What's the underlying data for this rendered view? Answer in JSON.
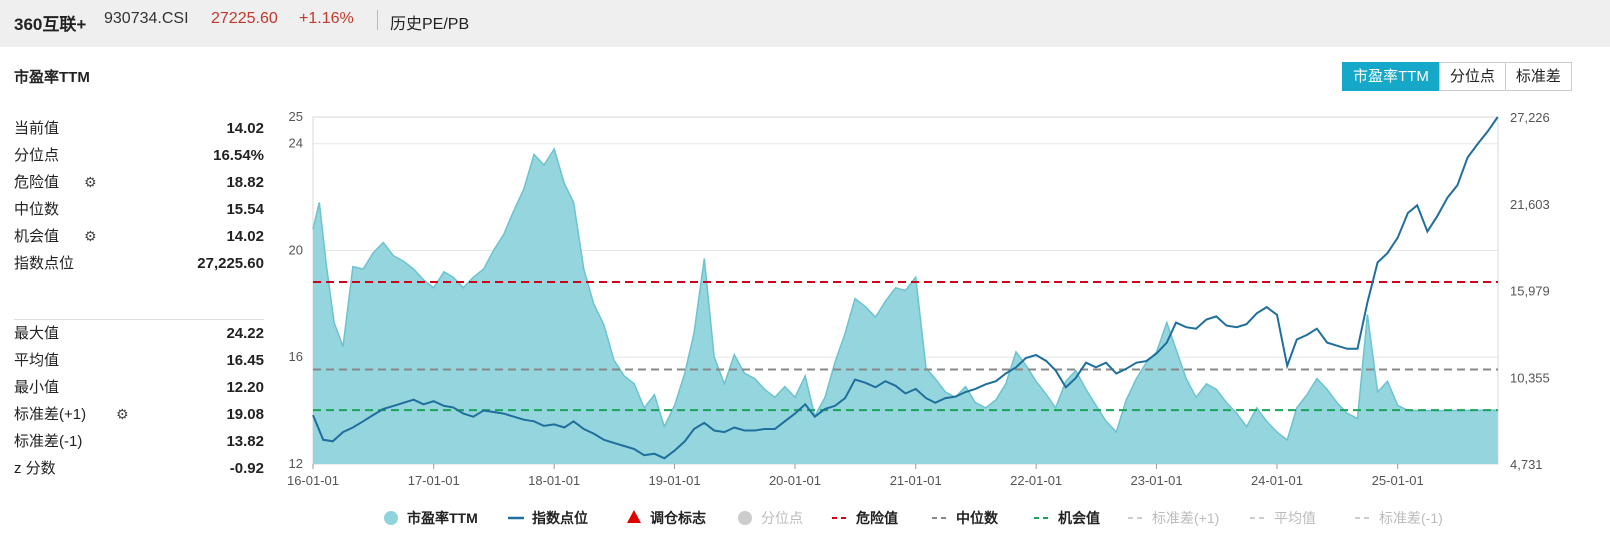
{
  "header": {
    "index_name": "360互联+",
    "index_code": "930734.CSI",
    "price": "27225.60",
    "change": "+1.16%",
    "section": "历史PE/PB"
  },
  "panel": {
    "title": "市盈率TTM",
    "tabs": [
      {
        "label": "市盈率TTM",
        "active": true
      },
      {
        "label": "分位点",
        "active": false
      },
      {
        "label": "标准差",
        "active": false
      }
    ]
  },
  "stats_top": [
    {
      "label": "当前值",
      "value": "14.02",
      "gear": false
    },
    {
      "label": "分位点",
      "value": "16.54%",
      "gear": false
    },
    {
      "label": "危险值",
      "value": "18.82",
      "gear": true
    },
    {
      "label": "中位数",
      "value": "15.54",
      "gear": false
    },
    {
      "label": "机会值",
      "value": "14.02",
      "gear": true
    },
    {
      "label": "指数点位",
      "value": "27,225.60",
      "gear": false
    }
  ],
  "stats_bottom": [
    {
      "label": "最大值",
      "value": "24.22",
      "gear": false
    },
    {
      "label": "平均值",
      "value": "16.45",
      "gear": false
    },
    {
      "label": "最小值",
      "value": "12.20",
      "gear": false
    },
    {
      "label": "标准差(+1)",
      "value": "19.08",
      "gear": true
    },
    {
      "label": "标准差(-1)",
      "value": "13.82",
      "gear": false
    },
    {
      "label": "z 分数",
      "value": "-0.92",
      "gear": false
    }
  ],
  "colors": {
    "pe_fill": "#8fd3dc",
    "pe_line": "#6cc3cf",
    "index_line": "#1f6f9c",
    "danger": "#d0021b",
    "median": "#888888",
    "opportunity": "#1aa35a",
    "disabled": "#cccccc",
    "accent": "#16a8c8",
    "price_red": "#c0392b"
  },
  "chart_data": {
    "type": "area",
    "x_start": "2016-01-01",
    "x_end": "2025-11-01",
    "x_tick_labels": [
      "16-01-01",
      "17-01-01",
      "18-01-01",
      "19-01-01",
      "20-01-01",
      "21-01-01",
      "22-01-01",
      "23-01-01",
      "24-01-01",
      "25-01-01"
    ],
    "y_left": {
      "range": [
        12,
        25
      ],
      "ticks": [
        12,
        16,
        20,
        24,
        25
      ]
    },
    "y_right": {
      "range": [
        4731,
        27226
      ],
      "ticks": [
        "4,731",
        "10,355",
        "15,979",
        "21,603",
        "27,226"
      ]
    },
    "grid": true,
    "legend_position": "bottom",
    "reference_lines": [
      {
        "name": "危险值",
        "value": 18.82
      },
      {
        "name": "中位数",
        "value": 15.54
      },
      {
        "name": "机会值",
        "value": 14.02
      }
    ],
    "series": [
      {
        "name": "市盈率TTM",
        "axis": "left",
        "points": [
          [
            "2016-01-01",
            20.8
          ],
          [
            "2016-01-20",
            21.8
          ],
          [
            "2016-02-10",
            19.5
          ],
          [
            "2016-03-05",
            17.3
          ],
          [
            "2016-04-01",
            16.4
          ],
          [
            "2016-05-01",
            19.4
          ],
          [
            "2016-06-01",
            19.3
          ],
          [
            "2016-07-01",
            19.9
          ],
          [
            "2016-08-01",
            20.3
          ],
          [
            "2016-09-01",
            19.8
          ],
          [
            "2016-10-01",
            19.6
          ],
          [
            "2016-11-01",
            19.3
          ],
          [
            "2016-12-01",
            18.9
          ],
          [
            "2017-01-01",
            18.6
          ],
          [
            "2017-02-01",
            19.2
          ],
          [
            "2017-03-01",
            19.0
          ],
          [
            "2017-04-01",
            18.6
          ],
          [
            "2017-05-01",
            19.0
          ],
          [
            "2017-06-01",
            19.3
          ],
          [
            "2017-07-01",
            20.0
          ],
          [
            "2017-08-01",
            20.6
          ],
          [
            "2017-09-01",
            21.5
          ],
          [
            "2017-10-01",
            22.3
          ],
          [
            "2017-11-01",
            23.6
          ],
          [
            "2017-12-01",
            23.2
          ],
          [
            "2018-01-01",
            23.8
          ],
          [
            "2018-02-01",
            22.5
          ],
          [
            "2018-03-01",
            21.8
          ],
          [
            "2018-04-01",
            19.3
          ],
          [
            "2018-05-01",
            18.0
          ],
          [
            "2018-06-01",
            17.2
          ],
          [
            "2018-07-01",
            15.9
          ],
          [
            "2018-08-01",
            15.3
          ],
          [
            "2018-09-01",
            15.0
          ],
          [
            "2018-10-01",
            14.1
          ],
          [
            "2018-11-01",
            14.6
          ],
          [
            "2018-12-01",
            13.4
          ],
          [
            "2019-01-01",
            14.2
          ],
          [
            "2019-02-01",
            15.4
          ],
          [
            "2019-03-01",
            16.9
          ],
          [
            "2019-04-01",
            19.7
          ],
          [
            "2019-05-01",
            16.0
          ],
          [
            "2019-06-01",
            15.0
          ],
          [
            "2019-07-01",
            16.1
          ],
          [
            "2019-08-01",
            15.4
          ],
          [
            "2019-09-01",
            15.2
          ],
          [
            "2019-10-01",
            14.8
          ],
          [
            "2019-11-01",
            14.5
          ],
          [
            "2019-12-01",
            14.9
          ],
          [
            "2020-01-01",
            14.5
          ],
          [
            "2020-02-01",
            15.3
          ],
          [
            "2020-03-01",
            13.8
          ],
          [
            "2020-04-01",
            14.5
          ],
          [
            "2020-05-01",
            15.8
          ],
          [
            "2020-06-01",
            16.9
          ],
          [
            "2020-07-01",
            18.2
          ],
          [
            "2020-08-01",
            17.9
          ],
          [
            "2020-09-01",
            17.5
          ],
          [
            "2020-10-01",
            18.1
          ],
          [
            "2020-11-01",
            18.6
          ],
          [
            "2020-12-01",
            18.5
          ],
          [
            "2021-01-01",
            19.0
          ],
          [
            "2021-02-01",
            15.6
          ],
          [
            "2021-03-01",
            15.2
          ],
          [
            "2021-04-01",
            14.7
          ],
          [
            "2021-05-01",
            14.5
          ],
          [
            "2021-06-01",
            14.9
          ],
          [
            "2021-07-01",
            14.3
          ],
          [
            "2021-08-01",
            14.1
          ],
          [
            "2021-09-01",
            14.4
          ],
          [
            "2021-10-01",
            15.0
          ],
          [
            "2021-11-01",
            16.2
          ],
          [
            "2021-12-01",
            15.7
          ],
          [
            "2022-01-01",
            15.1
          ],
          [
            "2022-02-01",
            14.6
          ],
          [
            "2022-03-01",
            14.1
          ],
          [
            "2022-04-01",
            15.1
          ],
          [
            "2022-05-01",
            15.5
          ],
          [
            "2022-06-01",
            14.8
          ],
          [
            "2022-07-01",
            14.2
          ],
          [
            "2022-08-01",
            13.6
          ],
          [
            "2022-09-01",
            13.2
          ],
          [
            "2022-10-01",
            14.4
          ],
          [
            "2022-11-01",
            15.2
          ],
          [
            "2022-12-01",
            15.8
          ],
          [
            "2023-01-01",
            16.2
          ],
          [
            "2023-02-01",
            17.3
          ],
          [
            "2023-03-01",
            16.3
          ],
          [
            "2023-04-01",
            15.2
          ],
          [
            "2023-05-01",
            14.5
          ],
          [
            "2023-06-01",
            15.0
          ],
          [
            "2023-07-01",
            14.8
          ],
          [
            "2023-08-01",
            14.3
          ],
          [
            "2023-09-01",
            13.9
          ],
          [
            "2023-10-01",
            13.4
          ],
          [
            "2023-11-01",
            14.1
          ],
          [
            "2023-12-01",
            13.6
          ],
          [
            "2024-01-01",
            13.2
          ],
          [
            "2024-02-01",
            12.9
          ],
          [
            "2024-03-01",
            14.1
          ],
          [
            "2024-04-01",
            14.6
          ],
          [
            "2024-05-01",
            15.2
          ],
          [
            "2024-06-01",
            14.8
          ],
          [
            "2024-07-01",
            14.3
          ],
          [
            "2024-08-01",
            13.9
          ],
          [
            "2024-09-01",
            13.7
          ],
          [
            "2024-10-01",
            17.6
          ],
          [
            "2024-11-01",
            14.7
          ],
          [
            "2024-12-01",
            15.1
          ],
          [
            "2025-01-01",
            14.2
          ],
          [
            "2025-02-01",
            14.0
          ],
          [
            "2025-06-01",
            14.0
          ],
          [
            "2025-10-31",
            14.02
          ]
        ]
      },
      {
        "name": "指数点位",
        "axis": "right",
        "points": [
          [
            "2016-01-01",
            7900
          ],
          [
            "2016-02-01",
            6300
          ],
          [
            "2016-03-01",
            6200
          ],
          [
            "2016-04-01",
            6800
          ],
          [
            "2016-05-01",
            7100
          ],
          [
            "2016-06-01",
            7500
          ],
          [
            "2016-07-01",
            7900
          ],
          [
            "2016-08-01",
            8300
          ],
          [
            "2016-09-01",
            8500
          ],
          [
            "2016-10-01",
            8700
          ],
          [
            "2016-11-01",
            8900
          ],
          [
            "2016-12-01",
            8600
          ],
          [
            "2017-01-01",
            8800
          ],
          [
            "2017-02-01",
            8500
          ],
          [
            "2017-03-01",
            8400
          ],
          [
            "2017-04-01",
            8000
          ],
          [
            "2017-05-01",
            7800
          ],
          [
            "2017-06-01",
            8200
          ],
          [
            "2017-07-01",
            8100
          ],
          [
            "2017-08-01",
            8000
          ],
          [
            "2017-09-01",
            7800
          ],
          [
            "2017-10-01",
            7600
          ],
          [
            "2017-11-01",
            7500
          ],
          [
            "2017-12-01",
            7200
          ],
          [
            "2018-01-01",
            7300
          ],
          [
            "2018-02-01",
            7100
          ],
          [
            "2018-03-01",
            7500
          ],
          [
            "2018-04-01",
            7000
          ],
          [
            "2018-05-01",
            6700
          ],
          [
            "2018-06-01",
            6300
          ],
          [
            "2018-07-01",
            6100
          ],
          [
            "2018-08-01",
            5900
          ],
          [
            "2018-09-01",
            5700
          ],
          [
            "2018-10-01",
            5300
          ],
          [
            "2018-11-01",
            5400
          ],
          [
            "2018-12-01",
            5100
          ],
          [
            "2019-01-01",
            5600
          ],
          [
            "2019-02-01",
            6200
          ],
          [
            "2019-03-01",
            7000
          ],
          [
            "2019-04-01",
            7400
          ],
          [
            "2019-05-01",
            6900
          ],
          [
            "2019-06-01",
            6800
          ],
          [
            "2019-07-01",
            7100
          ],
          [
            "2019-08-01",
            6900
          ],
          [
            "2019-09-01",
            6900
          ],
          [
            "2019-10-01",
            7000
          ],
          [
            "2019-11-01",
            7000
          ],
          [
            "2019-12-01",
            7500
          ],
          [
            "2020-01-01",
            8000
          ],
          [
            "2020-02-01",
            8600
          ],
          [
            "2020-03-01",
            7800
          ],
          [
            "2020-04-01",
            8300
          ],
          [
            "2020-05-01",
            8500
          ],
          [
            "2020-06-01",
            9000
          ],
          [
            "2020-07-01",
            10200
          ],
          [
            "2020-08-01",
            10000
          ],
          [
            "2020-09-01",
            9700
          ],
          [
            "2020-10-01",
            10100
          ],
          [
            "2020-11-01",
            9800
          ],
          [
            "2020-12-01",
            9300
          ],
          [
            "2021-01-01",
            9600
          ],
          [
            "2021-02-01",
            9000
          ],
          [
            "2021-03-01",
            8700
          ],
          [
            "2021-04-01",
            9000
          ],
          [
            "2021-05-01",
            9100
          ],
          [
            "2021-06-01",
            9400
          ],
          [
            "2021-07-01",
            9600
          ],
          [
            "2021-08-01",
            9900
          ],
          [
            "2021-09-01",
            10100
          ],
          [
            "2021-10-01",
            10600
          ],
          [
            "2021-11-01",
            11000
          ],
          [
            "2021-12-01",
            11600
          ],
          [
            "2022-01-01",
            11800
          ],
          [
            "2022-02-01",
            11400
          ],
          [
            "2022-03-01",
            10800
          ],
          [
            "2022-04-01",
            9700
          ],
          [
            "2022-05-01",
            10300
          ],
          [
            "2022-06-01",
            11300
          ],
          [
            "2022-07-01",
            11000
          ],
          [
            "2022-08-01",
            11300
          ],
          [
            "2022-09-01",
            10600
          ],
          [
            "2022-10-01",
            10900
          ],
          [
            "2022-11-01",
            11300
          ],
          [
            "2022-12-01",
            11400
          ],
          [
            "2023-01-01",
            11900
          ],
          [
            "2023-02-01",
            12600
          ],
          [
            "2023-03-01",
            13900
          ],
          [
            "2023-04-01",
            13600
          ],
          [
            "2023-05-01",
            13500
          ],
          [
            "2023-06-01",
            14100
          ],
          [
            "2023-07-01",
            14300
          ],
          [
            "2023-08-01",
            13700
          ],
          [
            "2023-09-01",
            13600
          ],
          [
            "2023-10-01",
            13800
          ],
          [
            "2023-11-01",
            14500
          ],
          [
            "2023-12-01",
            14900
          ],
          [
            "2024-01-01",
            14400
          ],
          [
            "2024-02-01",
            11100
          ],
          [
            "2024-03-01",
            12800
          ],
          [
            "2024-04-01",
            13100
          ],
          [
            "2024-05-01",
            13500
          ],
          [
            "2024-06-01",
            12600
          ],
          [
            "2024-07-01",
            12400
          ],
          [
            "2024-08-01",
            12200
          ],
          [
            "2024-09-01",
            12200
          ],
          [
            "2024-10-01",
            15200
          ],
          [
            "2024-11-01",
            17800
          ],
          [
            "2024-12-01",
            18400
          ],
          [
            "2025-01-01",
            19400
          ],
          [
            "2025-02-01",
            21000
          ],
          [
            "2025-03-01",
            21500
          ],
          [
            "2025-04-01",
            19800
          ],
          [
            "2025-05-01",
            20800
          ],
          [
            "2025-06-01",
            22000
          ],
          [
            "2025-07-01",
            22800
          ],
          [
            "2025-08-01",
            24600
          ],
          [
            "2025-09-01",
            25500
          ],
          [
            "2025-10-01",
            26300
          ],
          [
            "2025-10-31",
            27225.6
          ]
        ]
      }
    ],
    "legend": [
      {
        "name": "市盈率TTM",
        "style": "circle",
        "enabled": true
      },
      {
        "name": "指数点位",
        "style": "line",
        "enabled": true
      },
      {
        "name": "调仓标志",
        "style": "triangle",
        "enabled": true
      },
      {
        "name": "分位点",
        "style": "circle",
        "enabled": false
      },
      {
        "name": "危险值",
        "style": "dash",
        "enabled": true
      },
      {
        "name": "中位数",
        "style": "dash",
        "enabled": true
      },
      {
        "name": "机会值",
        "style": "dash",
        "enabled": true
      },
      {
        "name": "标准差(+1)",
        "style": "dash",
        "enabled": false
      },
      {
        "name": "平均值",
        "style": "dash",
        "enabled": false
      },
      {
        "name": "标准差(-1)",
        "style": "dash",
        "enabled": false
      }
    ]
  }
}
